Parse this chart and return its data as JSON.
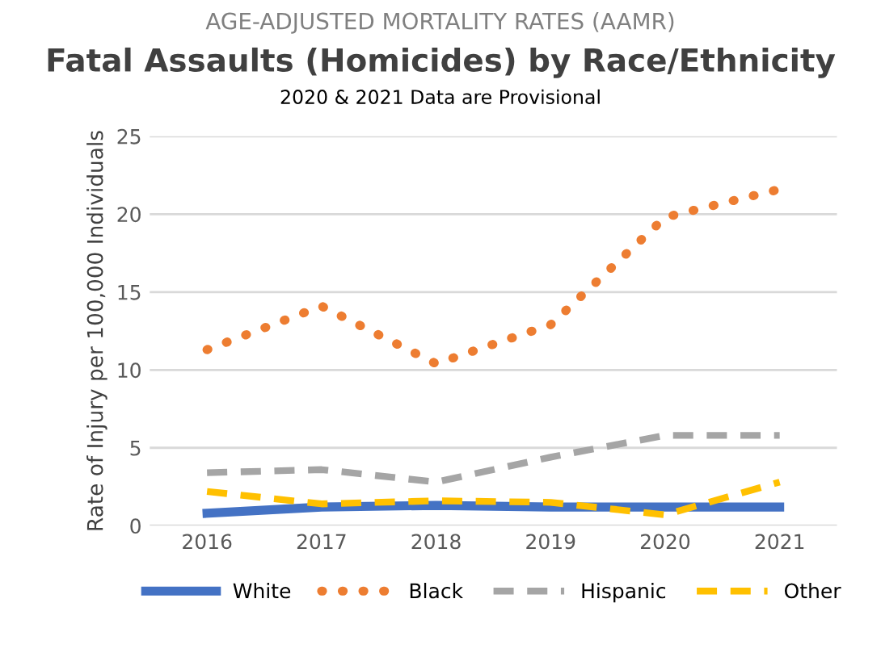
{
  "chart_data": {
    "type": "line",
    "title": "AGE-ADJUSTED MORTALITY RATES (AAMR)",
    "subtitle": "Fatal Assaults (Homicides) by Race/Ethnicity",
    "annotations": [
      "2020 & 2021 Data are Provisional"
    ],
    "ylabel": "Rate of Injury per 100,000 Individuals",
    "categories": [
      "2016",
      "2017",
      "2018",
      "2019",
      "2020",
      "2021"
    ],
    "series": [
      {
        "name": "White",
        "color": "#4472c4",
        "line_style": "solid",
        "values": [
          0.8,
          1.2,
          1.3,
          1.2,
          1.2,
          1.2
        ]
      },
      {
        "name": "Black",
        "color": "#ed7d31",
        "line_style": "dotted",
        "values": [
          11.3,
          14.1,
          10.4,
          12.9,
          19.8,
          21.6
        ]
      },
      {
        "name": "Hispanic",
        "color": "#a5a5a5",
        "line_style": "dashed",
        "values": [
          3.4,
          3.6,
          2.8,
          4.4,
          5.8,
          5.8
        ]
      },
      {
        "name": "Other",
        "color": "#ffc000",
        "line_style": "dashed",
        "values": [
          2.2,
          1.4,
          1.6,
          1.5,
          0.7,
          2.8
        ]
      }
    ],
    "ylim": [
      0,
      25
    ],
    "yticks": [
      0,
      5,
      10,
      15,
      20,
      25
    ],
    "grid": "y",
    "legend": "bottom",
    "marker": "none"
  }
}
